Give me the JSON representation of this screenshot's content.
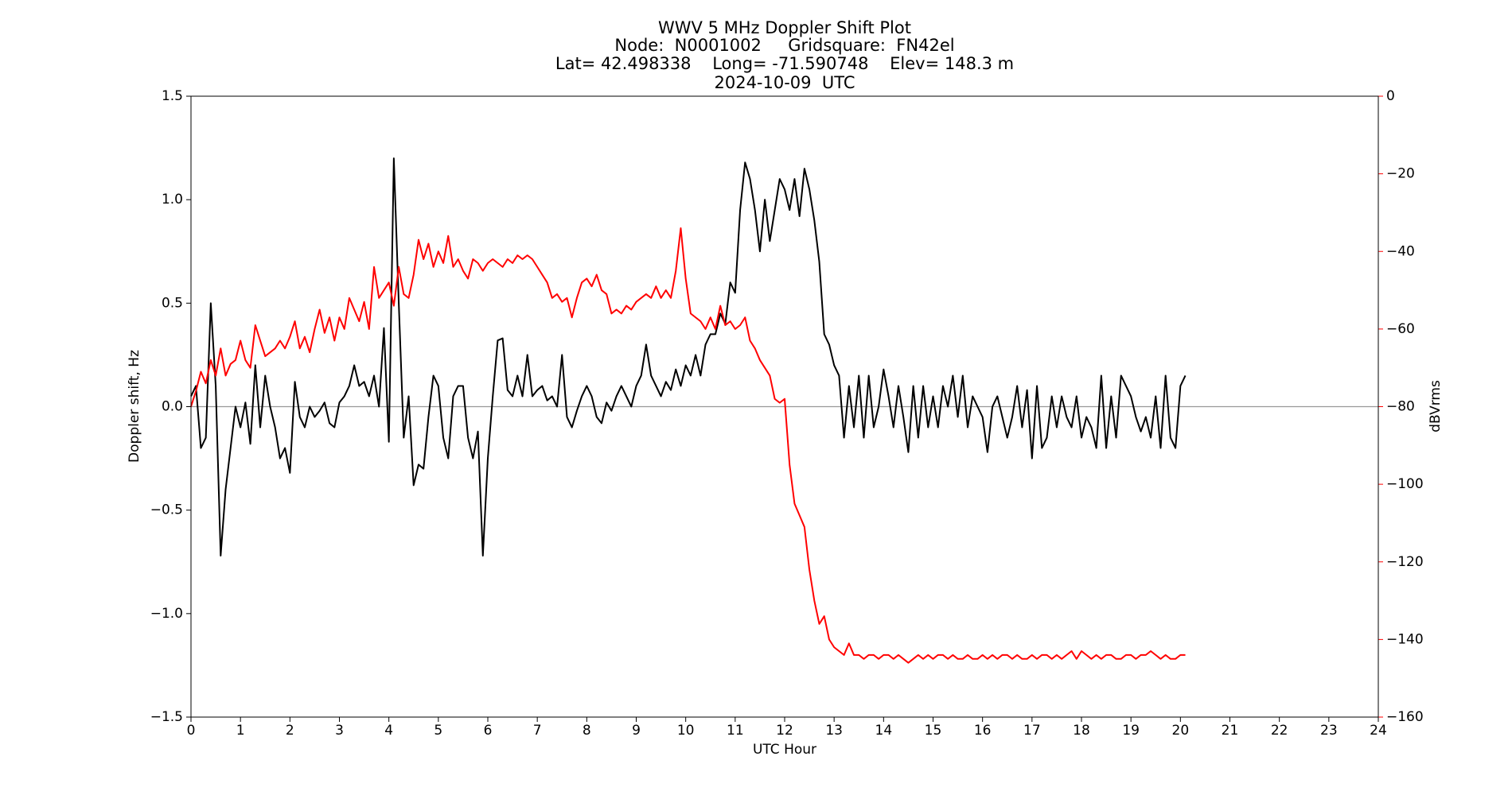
{
  "chart_data": {
    "type": "line",
    "title": [
      "WWV 5 MHz Doppler Shift Plot",
      "Node:  N0001002     Gridsquare:  FN42el",
      "Lat= 42.498338    Long= -71.590748    Elev= 148.3 m",
      "2024-10-09  UTC"
    ],
    "xlabel": "UTC Hour",
    "ylabel": "Doppler shift, Hz",
    "y2label": "dBVrms",
    "y2color": "#ff0000",
    "xlim": [
      0,
      24
    ],
    "xticks": [
      0,
      1,
      2,
      3,
      4,
      5,
      6,
      7,
      8,
      9,
      10,
      11,
      12,
      13,
      14,
      15,
      16,
      17,
      18,
      19,
      20,
      21,
      22,
      23,
      24
    ],
    "ylim": [
      -1.5,
      1.5
    ],
    "yticks": [
      {
        "value": -1.5,
        "label": "−1.5"
      },
      {
        "value": -1.0,
        "label": "−1.0"
      },
      {
        "value": -0.5,
        "label": "−0.5"
      },
      {
        "value": 0,
        "label": "0.0"
      },
      0.5,
      {
        "value": 1.0,
        "label": "1.0"
      },
      1.5
    ],
    "y2lim": [
      -160,
      0
    ],
    "y2ticks": [
      {
        "value": -160,
        "label": "−160"
      },
      {
        "value": -140,
        "label": "−140"
      },
      {
        "value": -120,
        "label": "−120"
      },
      {
        "value": -100,
        "label": "−100"
      },
      {
        "value": -80,
        "label": "−80"
      },
      {
        "value": -60,
        "label": "−60"
      },
      {
        "value": -40,
        "label": "−40"
      },
      {
        "value": -20,
        "label": "−20"
      },
      0
    ],
    "axhline": 0,
    "axhline_color": "#999999",
    "x": [
      0,
      0.1,
      0.2,
      0.3,
      0.4,
      0.5,
      0.6,
      0.7,
      0.8,
      0.9,
      1,
      1.1,
      1.2,
      1.3,
      1.4,
      1.5,
      1.6,
      1.7,
      1.8,
      1.9,
      2,
      2.1,
      2.2,
      2.3,
      2.4,
      2.5,
      2.6,
      2.7,
      2.8,
      2.9,
      3,
      3.1,
      3.2,
      3.3,
      3.4,
      3.5,
      3.6,
      3.7,
      3.8,
      3.9,
      4,
      4.1,
      4.2,
      4.3,
      4.4,
      4.5,
      4.6,
      4.7,
      4.8,
      4.9,
      5,
      5.1,
      5.2,
      5.3,
      5.4,
      5.5,
      5.6,
      5.7,
      5.8,
      5.9,
      6,
      6.1,
      6.2,
      6.3,
      6.4,
      6.5,
      6.6,
      6.7,
      6.8,
      6.9,
      7,
      7.1,
      7.2,
      7.3,
      7.4,
      7.5,
      7.6,
      7.7,
      7.8,
      7.9,
      8,
      8.1,
      8.2,
      8.3,
      8.4,
      8.5,
      8.6,
      8.7,
      8.8,
      8.9,
      9,
      9.1,
      9.2,
      9.3,
      9.4,
      9.5,
      9.6,
      9.7,
      9.8,
      9.9,
      10,
      10.1,
      10.2,
      10.3,
      10.4,
      10.5,
      10.6,
      10.7,
      10.8,
      10.9,
      11,
      11.1,
      11.2,
      11.3,
      11.4,
      11.5,
      11.6,
      11.7,
      11.8,
      11.9,
      12,
      12.1,
      12.2,
      12.3,
      12.4,
      12.5,
      12.6,
      12.7,
      12.8,
      12.9,
      13,
      13.1,
      13.2,
      13.3,
      13.4,
      13.5,
      13.6,
      13.7,
      13.8,
      13.9,
      14,
      14.1,
      14.2,
      14.3,
      14.4,
      14.5,
      14.6,
      14.7,
      14.8,
      14.9,
      15,
      15.1,
      15.2,
      15.3,
      15.4,
      15.5,
      15.6,
      15.7,
      15.8,
      15.9,
      16,
      16.1,
      16.2,
      16.3,
      16.4,
      16.5,
      16.6,
      16.7,
      16.8,
      16.9,
      17,
      17.1,
      17.2,
      17.3,
      17.4,
      17.5,
      17.6,
      17.7,
      17.8,
      17.9,
      18,
      18.1,
      18.2,
      18.3,
      18.4,
      18.5,
      18.6,
      18.7,
      18.8,
      18.9,
      19,
      19.1,
      19.2,
      19.3,
      19.4,
      19.5,
      19.6,
      19.7,
      19.8,
      19.9,
      20,
      20.1
    ],
    "series": [
      {
        "color": "#000000",
        "values": [
          0.05,
          0.1,
          -0.2,
          -0.15,
          0.5,
          0.1,
          -0.72,
          -0.4,
          -0.2,
          0.0,
          -0.1,
          0.02,
          -0.18,
          0.2,
          -0.1,
          0.15,
          0.0,
          -0.1,
          -0.25,
          -0.2,
          -0.32,
          0.12,
          -0.05,
          -0.1,
          0.0,
          -0.05,
          -0.02,
          0.02,
          -0.08,
          -0.1,
          0.02,
          0.05,
          0.1,
          0.2,
          0.1,
          0.12,
          0.05,
          0.15,
          0.0,
          0.38,
          -0.17,
          1.2,
          0.5,
          -0.15,
          0.05,
          -0.38,
          -0.28,
          -0.3,
          -0.05,
          0.15,
          0.1,
          -0.15,
          -0.25,
          0.05,
          0.1,
          0.1,
          -0.15,
          -0.25,
          -0.12,
          -0.72,
          -0.25,
          0.05,
          0.32,
          0.33,
          0.08,
          0.05,
          0.15,
          0.05,
          0.25,
          0.05,
          0.08,
          0.1,
          0.03,
          0.05,
          0.0,
          0.25,
          -0.05,
          -0.1,
          -0.02,
          0.05,
          0.1,
          0.05,
          -0.05,
          -0.08,
          0.02,
          -0.02,
          0.05,
          0.1,
          0.05,
          0.0,
          0.1,
          0.15,
          0.3,
          0.15,
          0.1,
          0.05,
          0.12,
          0.08,
          0.18,
          0.1,
          0.2,
          0.15,
          0.25,
          0.15,
          0.3,
          0.35,
          0.35,
          0.45,
          0.4,
          0.6,
          0.55,
          0.95,
          1.18,
          1.1,
          0.95,
          0.75,
          1.0,
          0.8,
          0.95,
          1.1,
          1.05,
          0.95,
          1.1,
          0.92,
          1.15,
          1.05,
          0.9,
          0.7,
          0.35,
          0.3,
          0.2,
          0.15,
          -0.15,
          0.1,
          -0.1,
          0.15,
          -0.15,
          0.15,
          -0.1,
          0.0,
          0.18,
          0.05,
          -0.1,
          0.1,
          -0.05,
          -0.22,
          0.1,
          -0.15,
          0.1,
          -0.1,
          0.05,
          -0.1,
          0.1,
          0.0,
          0.15,
          -0.05,
          0.15,
          -0.1,
          0.05,
          0.0,
          -0.05,
          -0.22,
          0.0,
          0.05,
          -0.05,
          -0.15,
          -0.05,
          0.1,
          -0.1,
          0.08,
          -0.25,
          0.1,
          -0.2,
          -0.15,
          0.05,
          -0.1,
          0.05,
          -0.05,
          -0.1,
          0.05,
          -0.15,
          -0.05,
          -0.1,
          -0.2,
          0.15,
          -0.2,
          0.05,
          -0.15,
          0.15,
          0.1,
          0.05,
          -0.05,
          -0.12,
          -0.05,
          -0.15,
          0.05,
          -0.2,
          0.15,
          -0.15,
          -0.2,
          0.1,
          0.15
        ]
      },
      {
        "color": "#ff0000",
        "axis": "y2",
        "values": [
          -80,
          -76,
          -71,
          -74,
          -68,
          -72,
          -65,
          -72,
          -69,
          -68,
          -63,
          -68,
          -70,
          -59,
          -63,
          -67,
          -66,
          -65,
          -63,
          -65,
          -62,
          -58,
          -65,
          -62,
          -66,
          -60,
          -55,
          -61,
          -57,
          -63,
          -57,
          -60,
          -52,
          -55,
          -58,
          -53,
          -60,
          -44,
          -52,
          -50,
          -48,
          -54,
          -44,
          -51,
          -52,
          -46,
          -37,
          -42,
          -38,
          -44,
          -40,
          -43,
          -36,
          -44,
          -42,
          -45,
          -47,
          -42,
          -43,
          -45,
          -43,
          -42,
          -43,
          -44,
          -42,
          -43,
          -41,
          -42,
          -41,
          -42,
          -44,
          -46,
          -48,
          -52,
          -51,
          -53,
          -52,
          -57,
          -52,
          -48,
          -47,
          -49,
          -46,
          -50,
          -51,
          -56,
          -55,
          -56,
          -54,
          -55,
          -53,
          -52,
          -51,
          -52,
          -49,
          -52,
          -50,
          -52,
          -45,
          -34,
          -47,
          -56,
          -57,
          -58,
          -60,
          -57,
          -60,
          -54,
          -59,
          -58,
          -60,
          -59,
          -57,
          -63,
          -65,
          -68,
          -70,
          -72,
          -78,
          -79,
          -78,
          -95,
          -105,
          -108,
          -111,
          -122,
          -130,
          -136,
          -134,
          -140,
          -142,
          -143,
          -144,
          -141,
          -144,
          -144,
          -145,
          -144,
          -144,
          -145,
          -144,
          -144,
          -145,
          -144,
          -145,
          -146,
          -145,
          -144,
          -145,
          -144,
          -145,
          -144,
          -144,
          -145,
          -144,
          -145,
          -145,
          -144,
          -145,
          -145,
          -144,
          -145,
          -144,
          -145,
          -144,
          -144,
          -145,
          -144,
          -145,
          -145,
          -144,
          -145,
          -144,
          -144,
          -145,
          -144,
          -145,
          -144,
          -143,
          -145,
          -143,
          -144,
          -145,
          -144,
          -145,
          -144,
          -144,
          -145,
          -145,
          -144,
          -144,
          -145,
          -144,
          -144,
          -143,
          -144,
          -145,
          -144,
          -145,
          -145,
          -144,
          -144
        ]
      }
    ]
  }
}
